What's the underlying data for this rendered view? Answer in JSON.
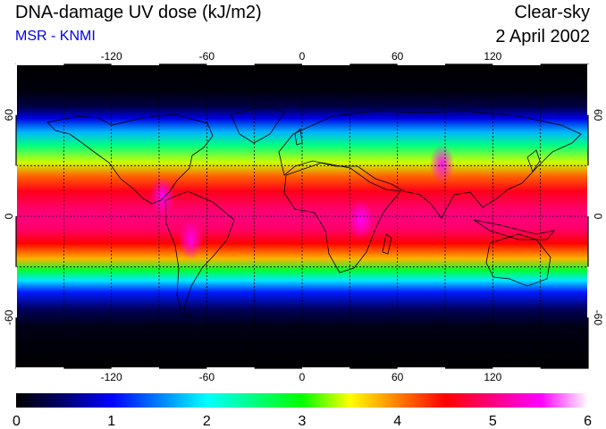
{
  "header": {
    "title": "DNA-damage UV dose (kJ/m2)",
    "subtitle": "MSR - KNMI",
    "condition": "Clear-sky",
    "date": "2 April 2002"
  },
  "colors": {
    "subtitle": "#0000ee",
    "frame": "#000000",
    "gridlines": "#000000",
    "coastline": "#000000"
  },
  "chart_data": {
    "type": "heatmap",
    "map_projection": "equirectangular",
    "lon_range": [
      -180,
      180
    ],
    "lat_range": [
      -90,
      90
    ],
    "lon_ticks": [
      -120,
      -60,
      0,
      60,
      120
    ],
    "lat_ticks": [
      -60,
      0,
      60
    ],
    "lon_tick_labels": [
      "-120",
      "-60",
      "0",
      "60",
      "120"
    ],
    "lat_tick_labels": [
      "-60",
      "0",
      "60"
    ],
    "grid_lon": [
      -150,
      -120,
      -90,
      -60,
      -30,
      0,
      30,
      60,
      90,
      120,
      150
    ],
    "grid_lat": [
      -30,
      0,
      30
    ],
    "grid": true,
    "colorbar": {
      "min": 0,
      "max": 6,
      "ticks": [
        0,
        1,
        2,
        3,
        4,
        5,
        6
      ],
      "tick_labels": [
        "0",
        "1",
        "2",
        "3",
        "4",
        "5",
        "6"
      ],
      "stops": [
        {
          "value": 0.0,
          "color": "#000000"
        },
        {
          "value": 0.5,
          "color": "#000070"
        },
        {
          "value": 1.0,
          "color": "#0000ff"
        },
        {
          "value": 1.5,
          "color": "#0080ff"
        },
        {
          "value": 2.0,
          "color": "#00ffff"
        },
        {
          "value": 2.5,
          "color": "#00ff80"
        },
        {
          "value": 3.0,
          "color": "#00ff00"
        },
        {
          "value": 3.5,
          "color": "#ffff00"
        },
        {
          "value": 4.0,
          "color": "#ff8000"
        },
        {
          "value": 4.5,
          "color": "#ff0000"
        },
        {
          "value": 5.0,
          "color": "#ff0080"
        },
        {
          "value": 5.5,
          "color": "#ff00ff"
        },
        {
          "value": 6.0,
          "color": "#ffffff"
        }
      ]
    },
    "zonal_profile": [
      {
        "lat": 90,
        "value": 0.0
      },
      {
        "lat": 75,
        "value": 0.05
      },
      {
        "lat": 65,
        "value": 0.3
      },
      {
        "lat": 58,
        "value": 0.9
      },
      {
        "lat": 50,
        "value": 1.7
      },
      {
        "lat": 42,
        "value": 2.5
      },
      {
        "lat": 32,
        "value": 3.4
      },
      {
        "lat": 24,
        "value": 4.1
      },
      {
        "lat": 15,
        "value": 4.6
      },
      {
        "lat": 5,
        "value": 4.9
      },
      {
        "lat": 0,
        "value": 5.0
      },
      {
        "lat": -8,
        "value": 4.9
      },
      {
        "lat": -16,
        "value": 4.5
      },
      {
        "lat": -25,
        "value": 3.8
      },
      {
        "lat": -32,
        "value": 2.8
      },
      {
        "lat": -38,
        "value": 1.9
      },
      {
        "lat": -45,
        "value": 1.1
      },
      {
        "lat": -55,
        "value": 0.4
      },
      {
        "lat": -65,
        "value": 0.1
      },
      {
        "lat": -90,
        "value": 0.0
      }
    ],
    "hotspots": [
      {
        "name": "andes",
        "lon": -70,
        "lat": -14,
        "value": 5.7
      },
      {
        "name": "central-america",
        "lon": -88,
        "lat": 12,
        "value": 5.4
      },
      {
        "name": "tibet",
        "lon": 88,
        "lat": 31,
        "value": 4.8
      },
      {
        "name": "east-africa",
        "lon": 37,
        "lat": -2,
        "value": 5.4
      }
    ]
  }
}
